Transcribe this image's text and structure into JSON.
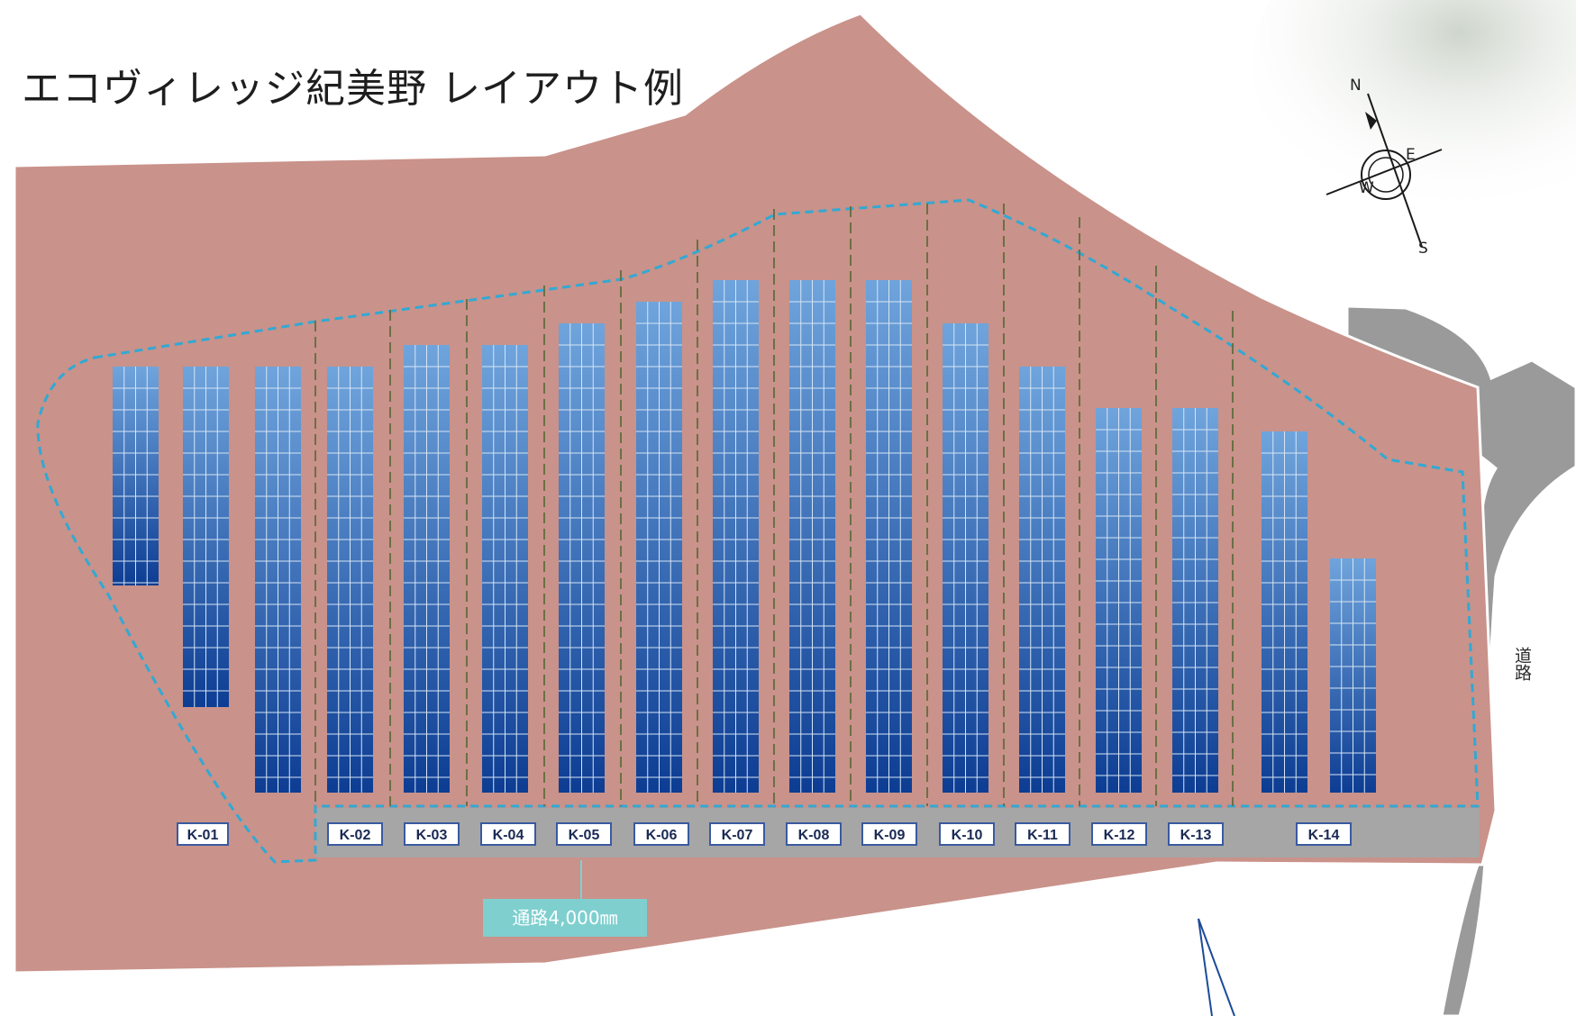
{
  "title": "エコヴィレッジ紀美野 レイアウト例",
  "road_label": "道路",
  "aisle_label": "通路4,000㎜",
  "compass": {
    "n": "N",
    "e": "E",
    "s": "S",
    "w": "W"
  },
  "lots": [
    "K-01",
    "K-02",
    "K-03",
    "K-04",
    "K-05",
    "K-06",
    "K-07",
    "K-08",
    "K-09",
    "K-10",
    "K-11",
    "K-12",
    "K-13",
    "K-14"
  ],
  "colors": {
    "land": "#c9928a",
    "road": "#9a9a9a",
    "panel_top": "#6fa4dc",
    "panel_bottom": "#0d3d93",
    "boundary": "#31a9d4",
    "divider": "#6b7045",
    "label_border": "#3a5aa0",
    "aisle": "#7fcfcf"
  }
}
